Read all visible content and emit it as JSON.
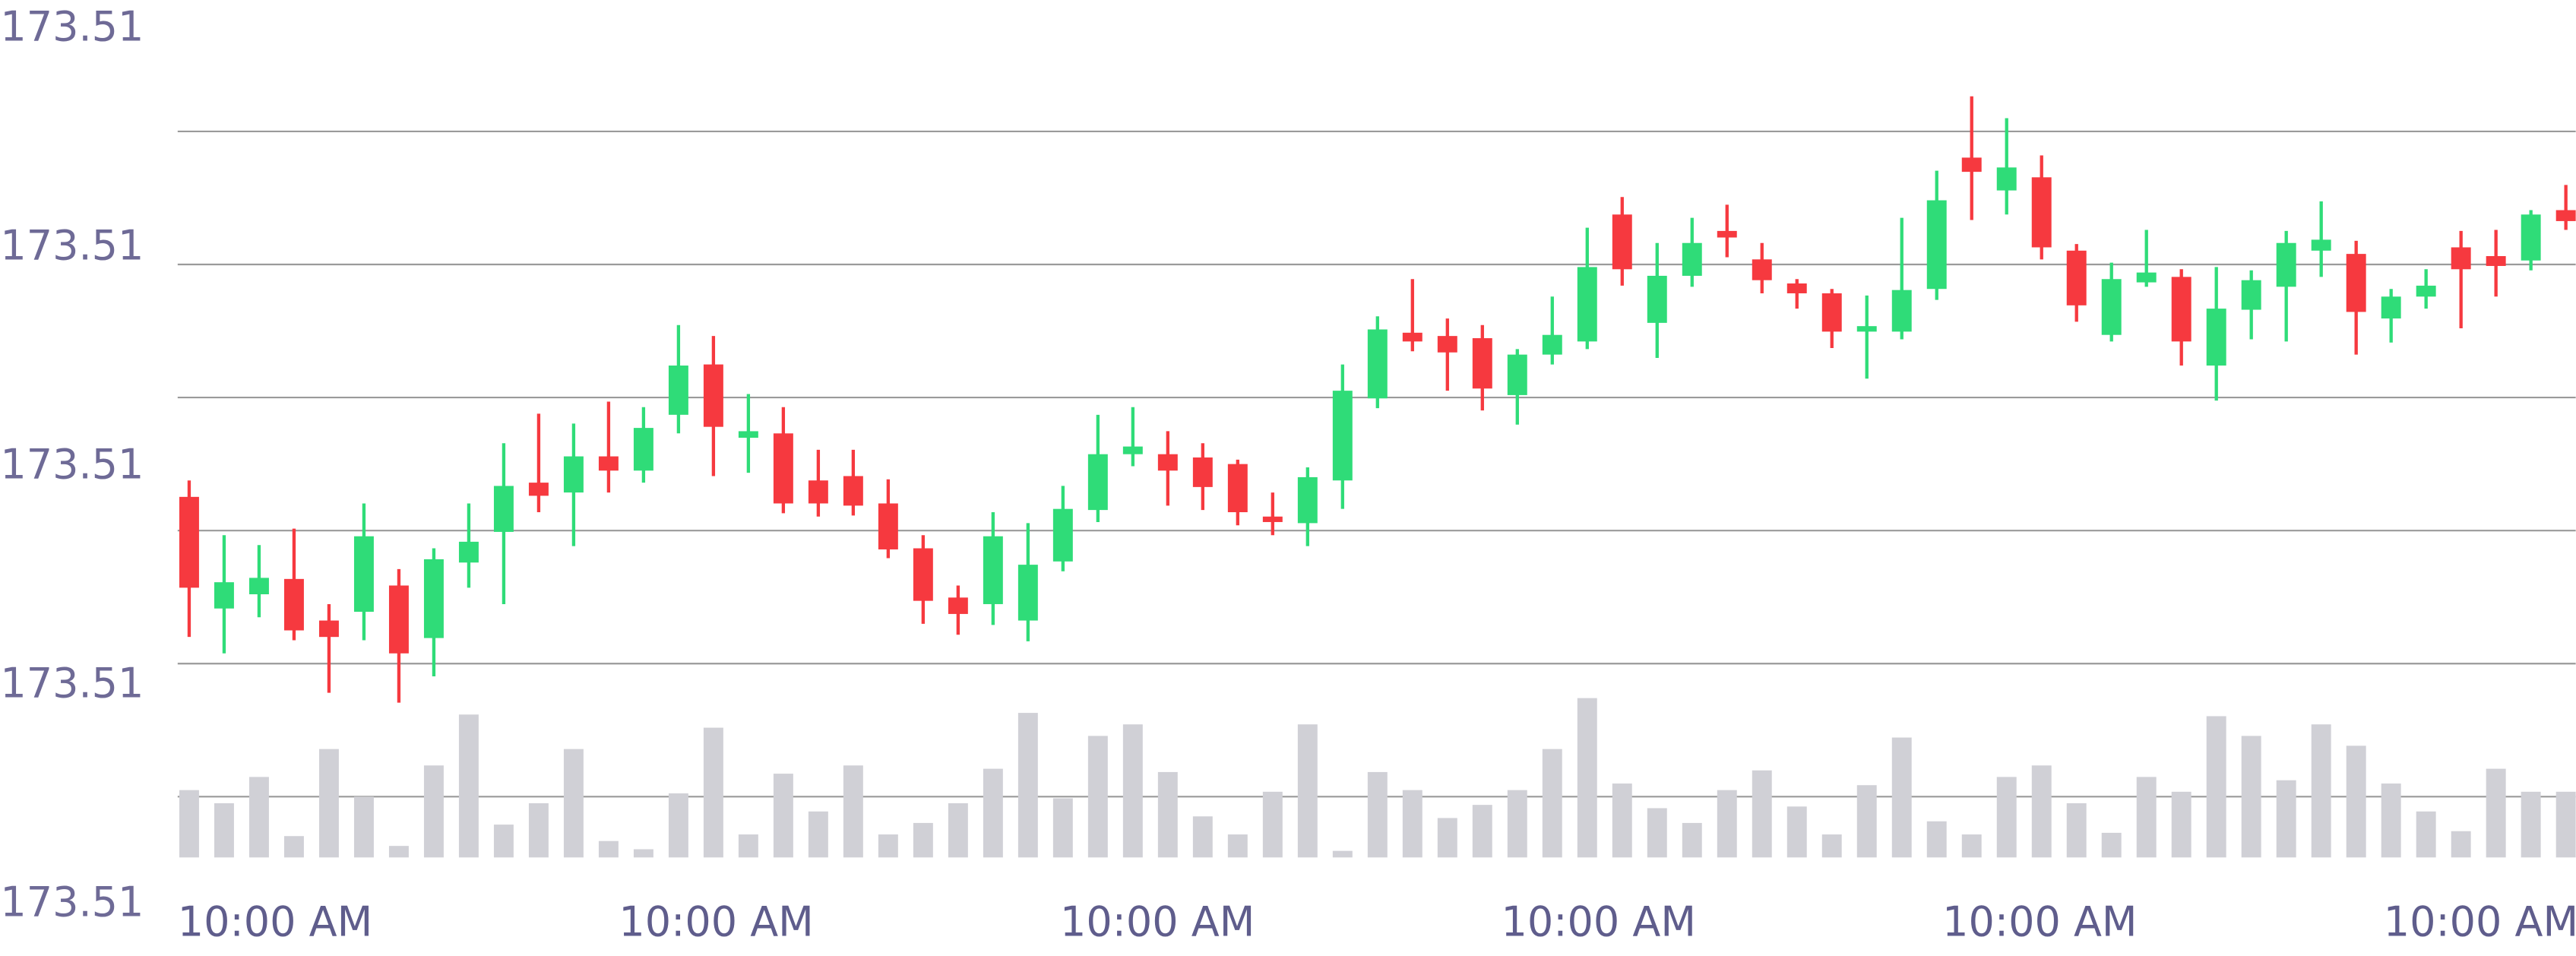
{
  "chart_data": {
    "type": "candlestick",
    "up_color": "#2fdc78",
    "down_color": "#f6393f",
    "volume_color": "#d0d0d6",
    "ylim": [
      173.506,
      173.514
    ],
    "yticks": [
      {
        "value": 173.514,
        "label": "173.51"
      },
      {
        "value": 173.512,
        "label": "173.51"
      },
      {
        "value": 173.51,
        "label": "173.51"
      },
      {
        "value": 173.508,
        "label": "173.51"
      },
      {
        "value": 173.506,
        "label": "173.51"
      }
    ],
    "x_labels": [
      "10:00 AM",
      "10:00 AM",
      "10:00 AM",
      "10:00 AM",
      "10:00 AM",
      "10:00 AM"
    ],
    "open": [
      173.50973,
      173.50871,
      173.50884,
      173.50898,
      173.5086,
      173.50868,
      173.50892,
      173.50844,
      173.50913,
      173.50941,
      173.50986,
      173.50977,
      173.5101,
      173.50997,
      173.51048,
      173.51094,
      173.51027,
      173.51031,
      173.50988,
      173.50992,
      173.50967,
      173.50926,
      173.50881,
      173.50875,
      173.5086,
      173.50914,
      173.50961,
      173.51012,
      173.51012,
      173.51009,
      173.51003,
      173.50955,
      173.50949,
      173.50988,
      173.51063,
      173.51123,
      173.5112,
      173.51118,
      173.51066,
      173.51103,
      173.51115,
      173.51231,
      173.51132,
      173.51175,
      173.51216,
      173.5119,
      173.51168,
      173.51159,
      173.51124,
      173.51124,
      173.51163,
      173.51283,
      173.51253,
      173.51265,
      173.51198,
      173.51121,
      173.51169,
      173.51174,
      173.51093,
      173.51144,
      173.51165,
      173.51198,
      173.51195,
      173.51136,
      173.51156,
      173.51201,
      173.51193,
      173.51189,
      173.51235
    ],
    "high": [
      173.50988,
      173.50938,
      173.50929,
      173.50944,
      173.50875,
      173.50967,
      173.50907,
      173.50926,
      173.50967,
      173.51022,
      173.51049,
      173.5104,
      173.5106,
      173.51055,
      173.5113,
      173.5112,
      173.51067,
      173.51055,
      173.51016,
      173.51016,
      173.50989,
      173.50938,
      173.50892,
      173.50959,
      173.50949,
      173.50983,
      173.51048,
      173.51055,
      173.51033,
      173.51022,
      173.51007,
      173.50977,
      173.51,
      173.51094,
      173.51138,
      173.51172,
      173.51136,
      173.5113,
      173.51108,
      173.51156,
      173.51219,
      173.51247,
      173.51205,
      173.51228,
      173.5124,
      173.51205,
      173.51172,
      173.51163,
      173.51157,
      173.51228,
      173.51271,
      173.51339,
      173.51319,
      173.51285,
      173.51204,
      173.51187,
      173.51217,
      173.51181,
      173.51183,
      173.5118,
      173.51216,
      173.51243,
      173.51207,
      173.51163,
      173.51181,
      173.51216,
      173.51217,
      173.51235,
      173.51258
    ],
    "low": [
      173.50845,
      173.5083,
      173.50863,
      173.50842,
      173.50794,
      173.50842,
      173.50785,
      173.50809,
      173.5089,
      173.50875,
      173.50959,
      173.50928,
      173.50977,
      173.50986,
      173.51031,
      173.50992,
      173.50995,
      173.50958,
      173.50955,
      173.50956,
      173.50917,
      173.50857,
      173.50847,
      173.50856,
      173.50841,
      173.50905,
      173.5095,
      173.51001,
      173.50965,
      173.50961,
      173.50947,
      173.50938,
      173.50928,
      173.50962,
      173.51054,
      173.51106,
      173.5107,
      173.51052,
      173.51039,
      173.51094,
      173.51108,
      173.51166,
      173.511,
      173.51165,
      173.51192,
      173.51159,
      173.51145,
      173.51109,
      173.51081,
      173.51117,
      173.51153,
      173.51226,
      173.51231,
      173.5119,
      173.51133,
      173.51115,
      173.51165,
      173.51093,
      173.51061,
      173.51117,
      173.51115,
      173.51174,
      173.51103,
      173.51114,
      173.51145,
      173.51127,
      173.51156,
      173.5118,
      173.51217
    ],
    "close": [
      173.5089,
      173.50895,
      173.50899,
      173.50851,
      173.50845,
      173.50937,
      173.5083,
      173.50916,
      173.50932,
      173.50983,
      173.50974,
      173.5101,
      173.50997,
      173.51036,
      173.51093,
      173.51037,
      173.51033,
      173.50967,
      173.50967,
      173.50965,
      173.50925,
      173.50878,
      173.50866,
      173.50937,
      173.50911,
      173.50962,
      173.51012,
      173.51019,
      173.50997,
      173.50982,
      173.50959,
      173.5095,
      173.50991,
      173.5107,
      173.51126,
      173.51115,
      173.51105,
      173.51072,
      173.51103,
      173.51121,
      173.51183,
      173.51181,
      173.51175,
      173.51205,
      173.5121,
      173.51171,
      173.51159,
      173.51124,
      173.51129,
      173.51162,
      173.51244,
      173.5127,
      173.51274,
      173.51201,
      173.51148,
      173.51172,
      173.51178,
      173.51115,
      173.51145,
      173.51171,
      173.51205,
      173.51208,
      173.51142,
      173.51156,
      173.51166,
      173.51181,
      173.51184,
      173.51231,
      173.51225
    ],
    "volume": [
      41,
      33,
      49,
      13,
      66,
      37,
      7,
      56,
      87,
      20,
      33,
      66,
      10,
      5,
      39,
      79,
      14,
      51,
      28,
      56,
      14,
      21,
      33,
      54,
      88,
      36,
      74,
      81,
      52,
      25,
      14,
      40,
      81,
      4,
      52,
      41,
      24,
      32,
      41,
      66,
      97,
      45,
      30,
      21,
      41,
      53,
      31,
      14,
      44,
      73,
      22,
      14,
      49,
      56,
      33,
      15,
      49,
      40,
      86,
      74,
      47,
      81,
      68,
      45,
      28,
      16,
      54,
      40,
      40
    ]
  }
}
